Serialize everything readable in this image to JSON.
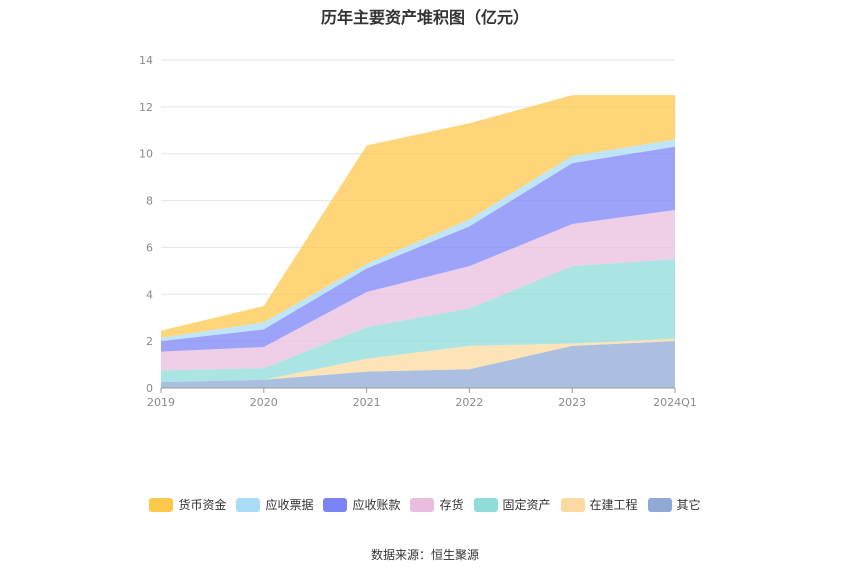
{
  "chart_data": {
    "type": "area",
    "stacked": true,
    "title": "历年主要资产堆积图（亿元）",
    "categories": [
      "2019",
      "2020",
      "2021",
      "2022",
      "2023",
      "2024Q1"
    ],
    "ylim": [
      0,
      14
    ],
    "yticks": [
      "0",
      "2",
      "4",
      "6",
      "8",
      "10",
      "12",
      "14"
    ],
    "grid": true,
    "legend_position": "bottom",
    "series": [
      {
        "name": "其它",
        "color": "#8fa9d6",
        "values": [
          0.25,
          0.35,
          0.7,
          0.8,
          1.8,
          2.0
        ]
      },
      {
        "name": "在建工程",
        "color": "#fcd9a0",
        "values": [
          0.0,
          0.0,
          0.55,
          1.0,
          0.1,
          0.1
        ]
      },
      {
        "name": "固定资产",
        "color": "#8fdcd9",
        "values": [
          0.5,
          0.5,
          1.35,
          1.6,
          3.3,
          3.4
        ]
      },
      {
        "name": "存货",
        "color": "#e9bde0",
        "values": [
          0.8,
          0.9,
          1.5,
          1.8,
          1.8,
          2.1
        ]
      },
      {
        "name": "应收账款",
        "color": "#7b84f5",
        "values": [
          0.45,
          0.75,
          1.0,
          1.7,
          2.6,
          2.7
        ]
      },
      {
        "name": "应收票据",
        "color": "#a9dcf7",
        "values": [
          0.15,
          0.3,
          0.2,
          0.3,
          0.3,
          0.3
        ]
      },
      {
        "name": "货币资金",
        "color": "#fec84c",
        "values": [
          0.3,
          0.7,
          5.05,
          4.1,
          2.6,
          1.9
        ]
      }
    ],
    "legend_order": [
      "货币资金",
      "应收票据",
      "应收账款",
      "存货",
      "固定资产",
      "在建工程",
      "其它"
    ]
  },
  "source": "数据来源：恒生聚源"
}
